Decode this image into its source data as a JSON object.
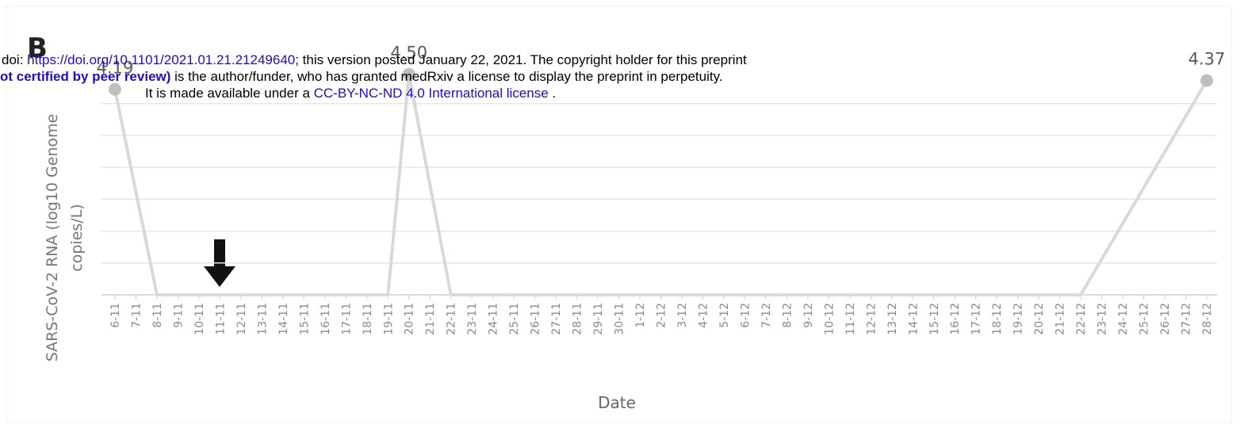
{
  "header": {
    "line1": [
      "doi: ",
      "https://doi.org/10.1101/2021.01.21.21249640",
      "; this version posted January 22, 2021. The copyright holder for this preprint"
    ],
    "line2": [
      "ot certified by peer review)",
      " is the author/funder, who has granted medRxiv a license to display the preprint in perpetuity."
    ],
    "line3": [
      "It is made available under a ",
      "CC-BY-NC-ND 4.0 International license",
      " ."
    ]
  },
  "chart_data": {
    "type": "line",
    "title": "B",
    "x_label": "Date",
    "y_label": [
      "SARS-CoV-2 RNA (log10 Genome",
      "copies/L)"
    ],
    "categories": [
      "6-11",
      "7-11",
      "8-11",
      "9-11",
      "10-11",
      "11-11",
      "12-11",
      "13-11",
      "14-11",
      "15-11",
      "16-11",
      "17-11",
      "18-11",
      "19-11",
      "20-11",
      "21-11",
      "22-11",
      "23-11",
      "24-11",
      "25-11",
      "26-11",
      "27-11",
      "28-11",
      "29-11",
      "30-11",
      "1-12",
      "2-12",
      "3-12",
      "4-12",
      "5-12",
      "6-12",
      "7-12",
      "8-12",
      "9-12",
      "10-12",
      "11-12",
      "12-12",
      "13-12",
      "14-12",
      "15-12",
      "16-12",
      "17-12",
      "18-12",
      "19-12",
      "20-12",
      "21-12",
      "22-12",
      "23-12",
      "24-12",
      "25-12",
      "26-12",
      "27-12",
      "28-12"
    ],
    "values": [
      4.19,
      null,
      0,
      null,
      null,
      null,
      null,
      null,
      null,
      null,
      null,
      null,
      null,
      0,
      4.5,
      null,
      0,
      null,
      null,
      null,
      null,
      null,
      null,
      null,
      null,
      null,
      null,
      null,
      null,
      null,
      null,
      null,
      null,
      null,
      null,
      null,
      null,
      null,
      null,
      null,
      null,
      null,
      null,
      null,
      null,
      null,
      0,
      null,
      null,
      null,
      null,
      null,
      4.37
    ],
    "value_labels": [
      "4.19",
      null,
      null,
      null,
      null,
      null,
      null,
      null,
      null,
      null,
      null,
      null,
      null,
      null,
      "4.50",
      null,
      null,
      null,
      null,
      null,
      null,
      null,
      null,
      null,
      null,
      null,
      null,
      null,
      null,
      null,
      null,
      null,
      null,
      null,
      null,
      null,
      null,
      null,
      null,
      null,
      null,
      null,
      null,
      null,
      null,
      null,
      null,
      null,
      null,
      null,
      null,
      null,
      "4.37"
    ],
    "color": "#d9d9d9",
    "marker_color": "#bfbfbf",
    "ylim": [
      0,
      4.8
    ],
    "yticks": [
      0,
      0.65,
      1.3,
      1.95,
      2.6,
      3.25,
      3.9
    ],
    "grid": true
  }
}
